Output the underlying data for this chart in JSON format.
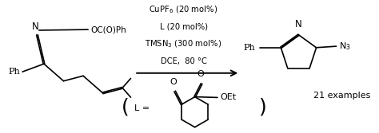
{
  "bg_color": "#ffffff",
  "conditions_lines": [
    "CuPF$_6$ (20 mol%)",
    "L (20 mol%)",
    "TMSN$_3$ (300 mol%)",
    "DCE,  80 °C"
  ],
  "examples_text": "21 examples",
  "figsize": [
    4.74,
    1.67
  ],
  "dpi": 100,
  "aspect": 2.838
}
